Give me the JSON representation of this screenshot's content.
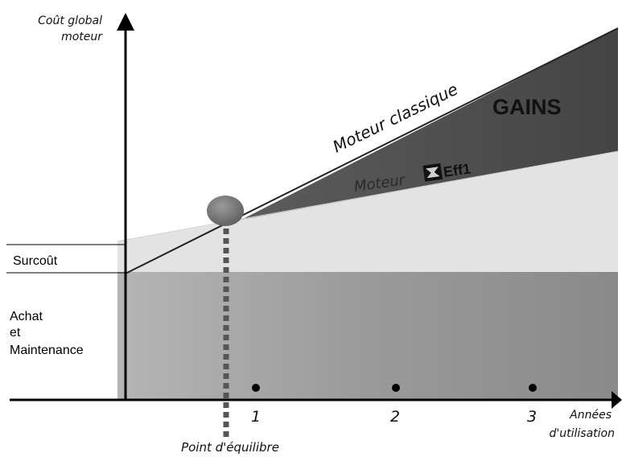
{
  "axes": {
    "y_label_line1": "Coût global",
    "y_label_line2": "moteur",
    "x_label_line1": "Années",
    "x_label_line2": "d'utilisation",
    "x_ticks": [
      "1",
      "2",
      "3"
    ]
  },
  "lines": {
    "classic": "Moteur classique",
    "eff1_prefix": "Moteur",
    "eff1_suffix": "Eff1"
  },
  "regions": {
    "gains": "GAINS",
    "surcout": "Surcoût",
    "achat_line1": "Achat",
    "achat_line2": "et",
    "achat_line3": "Maintenance"
  },
  "marker": {
    "equilibrium": "Point d'équilibre"
  },
  "colors": {
    "gains_area": "#575757",
    "light_band": "#e4e4e4",
    "base_area": "#9d9d9d",
    "axis": "#000000",
    "marker": "#6e6e6e"
  }
}
